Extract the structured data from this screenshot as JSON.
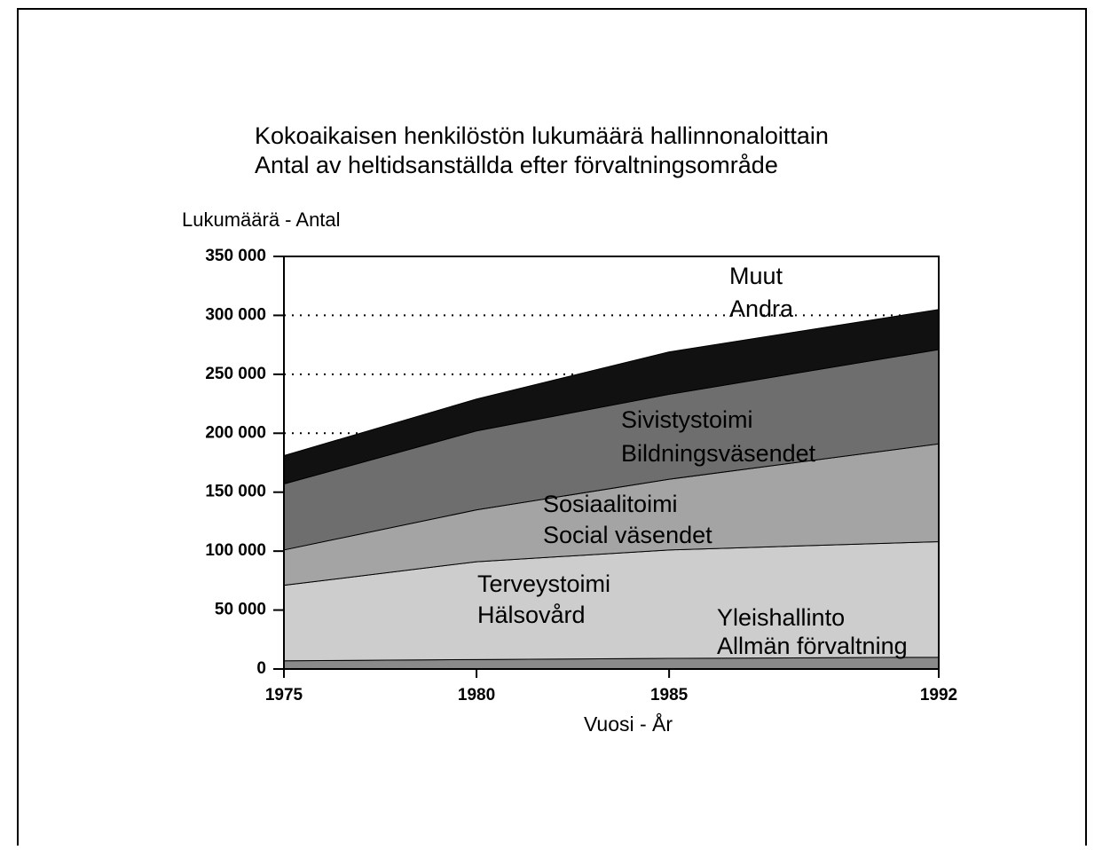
{
  "chart_data": {
    "type": "stacked_area",
    "title": "Kokoaikaisen henkilöstön lukumäärä hallinnonaloittain",
    "subtitle": "Antal av heltidsanställda efter förvaltningsområde",
    "y_label": "Lukumäärä - Antal",
    "x_label": "Vuosi - År",
    "x": [
      1975,
      1980,
      1985,
      1992
    ],
    "xlim": [
      1975,
      1992
    ],
    "xticks": [
      1975,
      1980,
      1985,
      1992
    ],
    "ylim": [
      0,
      350000
    ],
    "yticks": [
      {
        "value": 0,
        "label": "0"
      },
      {
        "value": 50000,
        "label": "50 000"
      },
      {
        "value": 100000,
        "label": "100 000"
      },
      {
        "value": 150000,
        "label": "150 000"
      },
      {
        "value": 200000,
        "label": "200 000"
      },
      {
        "value": 250000,
        "label": "250 000"
      },
      {
        "value": 300000,
        "label": "300 000"
      },
      {
        "value": 350000,
        "label": "350 000"
      }
    ],
    "grid": true,
    "series": [
      {
        "name": [
          "Yleishallinto",
          "Allmän förvaltning"
        ],
        "color": "#8a8a8a",
        "values": [
          7000,
          8000,
          9000,
          10000
        ]
      },
      {
        "name": [
          "Terveystoimi",
          "Hälsovård"
        ],
        "color": "#cdcdcd",
        "values": [
          64000,
          83000,
          92000,
          98000
        ]
      },
      {
        "name": [
          "Sosiaalitoimi",
          "Social väsendet"
        ],
        "color": "#a4a4a4",
        "values": [
          30000,
          44000,
          60000,
          83000
        ]
      },
      {
        "name": [
          "Sivistystoimi",
          "Bildningsväsendet"
        ],
        "color": "#6e6e6e",
        "values": [
          56000,
          67000,
          72000,
          80000
        ]
      },
      {
        "name": [
          "Muut",
          "Andra"
        ],
        "color": "#111111",
        "values": [
          24000,
          27000,
          36000,
          34000
        ]
      }
    ]
  }
}
